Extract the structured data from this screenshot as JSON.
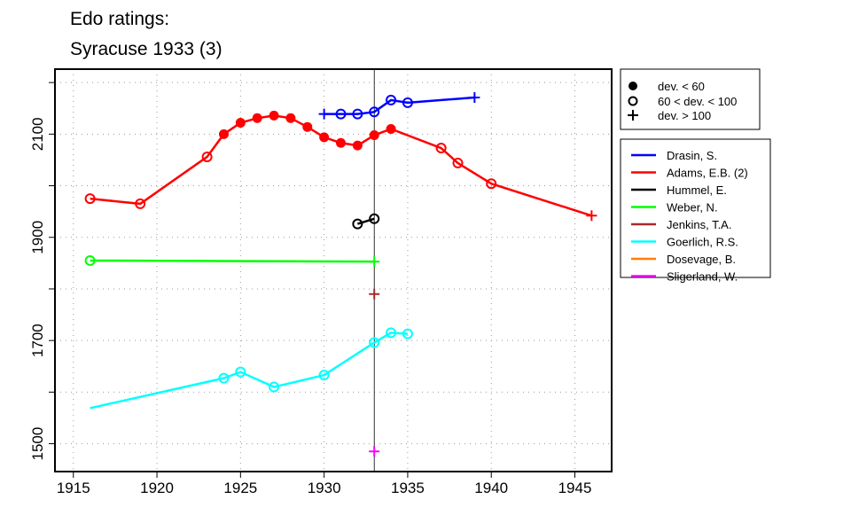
{
  "chart_data": {
    "type": "line",
    "title": "Edo ratings:",
    "subtitle": "Syracuse 1933 (3)",
    "xlabel": "",
    "ylabel": "",
    "xlim": [
      1913.9,
      1947.2
    ],
    "ylim": [
      1446,
      2226
    ],
    "x_ticks": [
      1915,
      1920,
      1925,
      1930,
      1935,
      1940,
      1945
    ],
    "y_ticks": [
      1500,
      1600,
      1700,
      1800,
      1900,
      2000,
      2100,
      2200
    ],
    "y_tick_labels": [
      1500,
      1700,
      1900,
      2100
    ],
    "grid": true,
    "reference_year": 1933,
    "marker_legend": [
      {
        "symbol": "filled",
        "label": "dev. < 60"
      },
      {
        "symbol": "open",
        "label": "60 < dev. < 100"
      },
      {
        "symbol": "plus",
        "label": "dev. > 100"
      }
    ],
    "series": [
      {
        "name": "Drasin, S.",
        "color": "#0000ff",
        "points": [
          [
            1930,
            2139,
            "plus"
          ],
          [
            1931,
            2139,
            "open"
          ],
          [
            1932,
            2139,
            "open"
          ],
          [
            1933,
            2143,
            "open"
          ],
          [
            1934,
            2166,
            "open"
          ],
          [
            1935,
            2161,
            "open"
          ],
          [
            1939,
            2171,
            "plus"
          ]
        ]
      },
      {
        "name": "Adams, E.B. (2)",
        "color": "#ff0000",
        "points": [
          [
            1916,
            1975,
            "open"
          ],
          [
            1919,
            1965,
            "open"
          ],
          [
            1923,
            2056,
            "open"
          ],
          [
            1924,
            2100,
            "filled"
          ],
          [
            1925,
            2122,
            "filled"
          ],
          [
            1926,
            2131,
            "filled"
          ],
          [
            1927,
            2136,
            "filled"
          ],
          [
            1928,
            2131,
            "filled"
          ],
          [
            1929,
            2114,
            "filled"
          ],
          [
            1930,
            2094,
            "filled"
          ],
          [
            1931,
            2083,
            "filled"
          ],
          [
            1932,
            2078,
            "filled"
          ],
          [
            1933,
            2098,
            "filled"
          ],
          [
            1934,
            2110,
            "filled"
          ],
          [
            1937,
            2073,
            "open"
          ],
          [
            1938,
            2044,
            "open"
          ],
          [
            1940,
            2004,
            "open"
          ],
          [
            1946,
            1942,
            "plus"
          ]
        ]
      },
      {
        "name": "Hummel, E.",
        "color": "#000000",
        "points": [
          [
            1932,
            1926,
            "open"
          ],
          [
            1933,
            1936,
            "open"
          ]
        ]
      },
      {
        "name": "Weber, N.",
        "color": "#00ff00",
        "points": [
          [
            1916,
            1855,
            "open"
          ],
          [
            1933,
            1853,
            "plus"
          ]
        ]
      },
      {
        "name": "Jenkins, T.A.",
        "color": "#a52a2a",
        "points": [
          [
            1933,
            1790,
            "plus"
          ]
        ]
      },
      {
        "name": "Goerlich, R.S.",
        "color": "#00ffff",
        "points": [
          [
            1916,
            1569,
            "none"
          ],
          [
            1924,
            1627,
            "open"
          ],
          [
            1925,
            1639,
            "open"
          ],
          [
            1927,
            1610,
            "open"
          ],
          [
            1930,
            1633,
            "open"
          ],
          [
            1933,
            1696,
            "open"
          ],
          [
            1934,
            1715,
            "open"
          ],
          [
            1935,
            1713,
            "open"
          ]
        ]
      },
      {
        "name": "Dosevage, B.",
        "color": "#ff7f00",
        "points": []
      },
      {
        "name": "Sligerland, W.",
        "color": "#ff00ff",
        "points": [
          [
            1933,
            1485,
            "plus"
          ]
        ]
      }
    ]
  }
}
